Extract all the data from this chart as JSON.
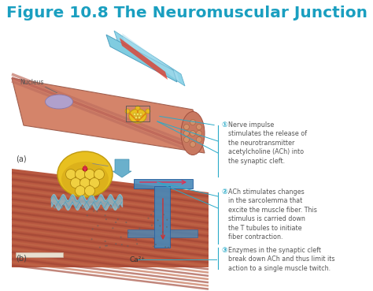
{
  "title": "Figure 10.8 The Neuromuscular Junction",
  "title_color": "#1a9fc0",
  "title_fontsize": 14.5,
  "bg_color": "#ffffff",
  "annotation1_num": "①",
  "annotation1_text": "Nerve impulse\nstimulates the release of\nthe neurotransmitter\nacetylcholine (ACh) into\nthe synaptic cleft.",
  "annotation2_num": "②",
  "annotation2_text": "ACh stimulates changes\nin the sarcolemma that\nexcite the muscle fiber. This\nstimulus is carried down\nthe T tubules to initiate\nfiber contraction.",
  "annotation3_num": "③",
  "annotation3_text": "Enzymes in the synaptic cleft\nbreak down ACh and thus limit its\naction to a single muscle twitch.",
  "label_a": "(a)",
  "label_b": "(b)",
  "label_nucleus": "Nucleus",
  "label_ca": "Ca²⁺",
  "ann_text_color": "#555555",
  "annotation_color": "#2aaac8",
  "annotation_fontsize": 5.8,
  "num_fontsize": 6.5,
  "fig_width": 4.74,
  "fig_height": 3.69,
  "dpi": 100,
  "muscle_a_color": "#d4846a",
  "muscle_a_stripe1": "#c07060",
  "muscle_a_stripe2": "#b86055",
  "muscle_b_color": "#b85840",
  "muscle_b_stripe1": "#a04535",
  "muscle_b_stripe2": "#c06848",
  "nerve_color": "#80c8d8",
  "nerve_edge": "#50a0b8",
  "knob_color": "#e8c020",
  "knob_edge": "#c09a10",
  "vesicle_color": "#f0d040",
  "vesicle_edge": "#b08810",
  "cleft_color": "#88c8dc",
  "t_tubule_color": "#4888b8",
  "t_tubule_edge": "#2860a0",
  "nucleus_color": "#b0a0cc",
  "nucleus_edge": "#8878aa",
  "arrow_color": "#6ab0cc",
  "synapse_dot_color": "#cc2020",
  "pink_arrow_color": "#e03050",
  "white_bar_color": "#e8e0d0"
}
